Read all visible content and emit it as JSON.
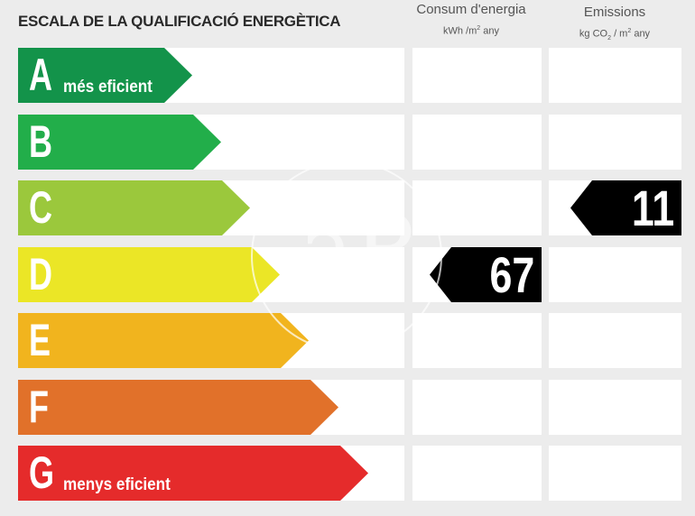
{
  "header": {
    "title": "ESCALA DE LA QUALIFICACIÓ ENERGÈTICA",
    "consum_title": "Consum d'energia",
    "consum_unit_pre": "kWh /m",
    "consum_unit_sup": "2",
    "consum_unit_post": " any",
    "emis_title": "Emissions",
    "emis_unit_pre": "kg CO",
    "emis_unit_sub": "2",
    "emis_unit_mid": " / m",
    "emis_unit_sup": "2",
    "emis_unit_post": " any"
  },
  "rows": [
    {
      "letter": "A",
      "label": "més eficient",
      "color": "#13934a"
    },
    {
      "letter": "B",
      "label": "",
      "color": "#22ae4a"
    },
    {
      "letter": "C",
      "label": "",
      "color": "#9bc83c"
    },
    {
      "letter": "D",
      "label": "",
      "color": "#ebe626"
    },
    {
      "letter": "E",
      "label": "",
      "color": "#f1b41e"
    },
    {
      "letter": "F",
      "label": "",
      "color": "#e1712a"
    },
    {
      "letter": "G",
      "label": "menys eficient",
      "color": "#e52b2b"
    }
  ],
  "ratings": {
    "consum": {
      "class": "D",
      "value": "67"
    },
    "emissions": {
      "class": "C",
      "value": "11"
    }
  },
  "watermark": {
    "letters": "aP"
  }
}
